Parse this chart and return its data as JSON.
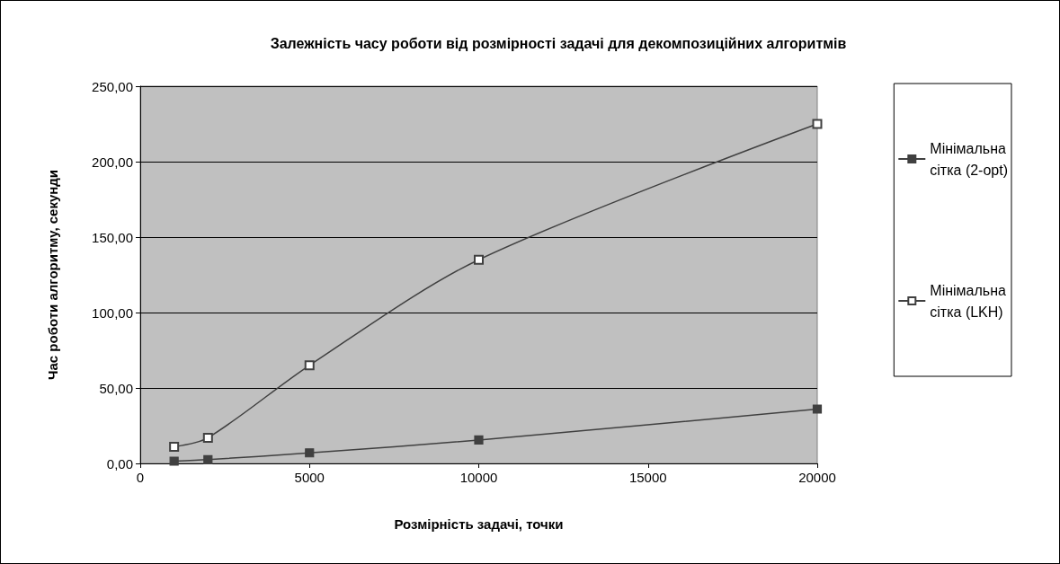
{
  "chart_data": {
    "type": "line",
    "title": "Залежність часу роботи від розмірності задачі для декомпозиційних алгоритмів",
    "xlabel": "Розмірність задачі, точки",
    "ylabel": "Час роботи алгоритму, секунди",
    "x": [
      1000,
      2000,
      5000,
      10000,
      20000
    ],
    "series": [
      {
        "name": "Мінімальна сітка (2-opt)",
        "color": "#404040",
        "values": [
          1.5,
          2.5,
          7,
          15.5,
          36
        ]
      },
      {
        "name": "Мінімальна сітка (LKH)",
        "color": "#404040",
        "values": [
          11,
          17,
          65,
          135,
          225
        ]
      }
    ],
    "xlim": [
      0,
      20000
    ],
    "xticks": [
      0,
      5000,
      10000,
      15000,
      20000
    ],
    "ylim": [
      0,
      250
    ],
    "yticks": [
      {
        "value": 0,
        "label": "0,00"
      },
      {
        "value": 50,
        "label": "50,00"
      },
      {
        "value": 100,
        "label": "100,00"
      },
      {
        "value": 150,
        "label": "150,00"
      },
      {
        "value": 200,
        "label": "200,00"
      },
      {
        "value": 250,
        "label": "250,00"
      }
    ],
    "grid": "y",
    "legend": "right",
    "marker": "square",
    "line_style": "solid"
  }
}
